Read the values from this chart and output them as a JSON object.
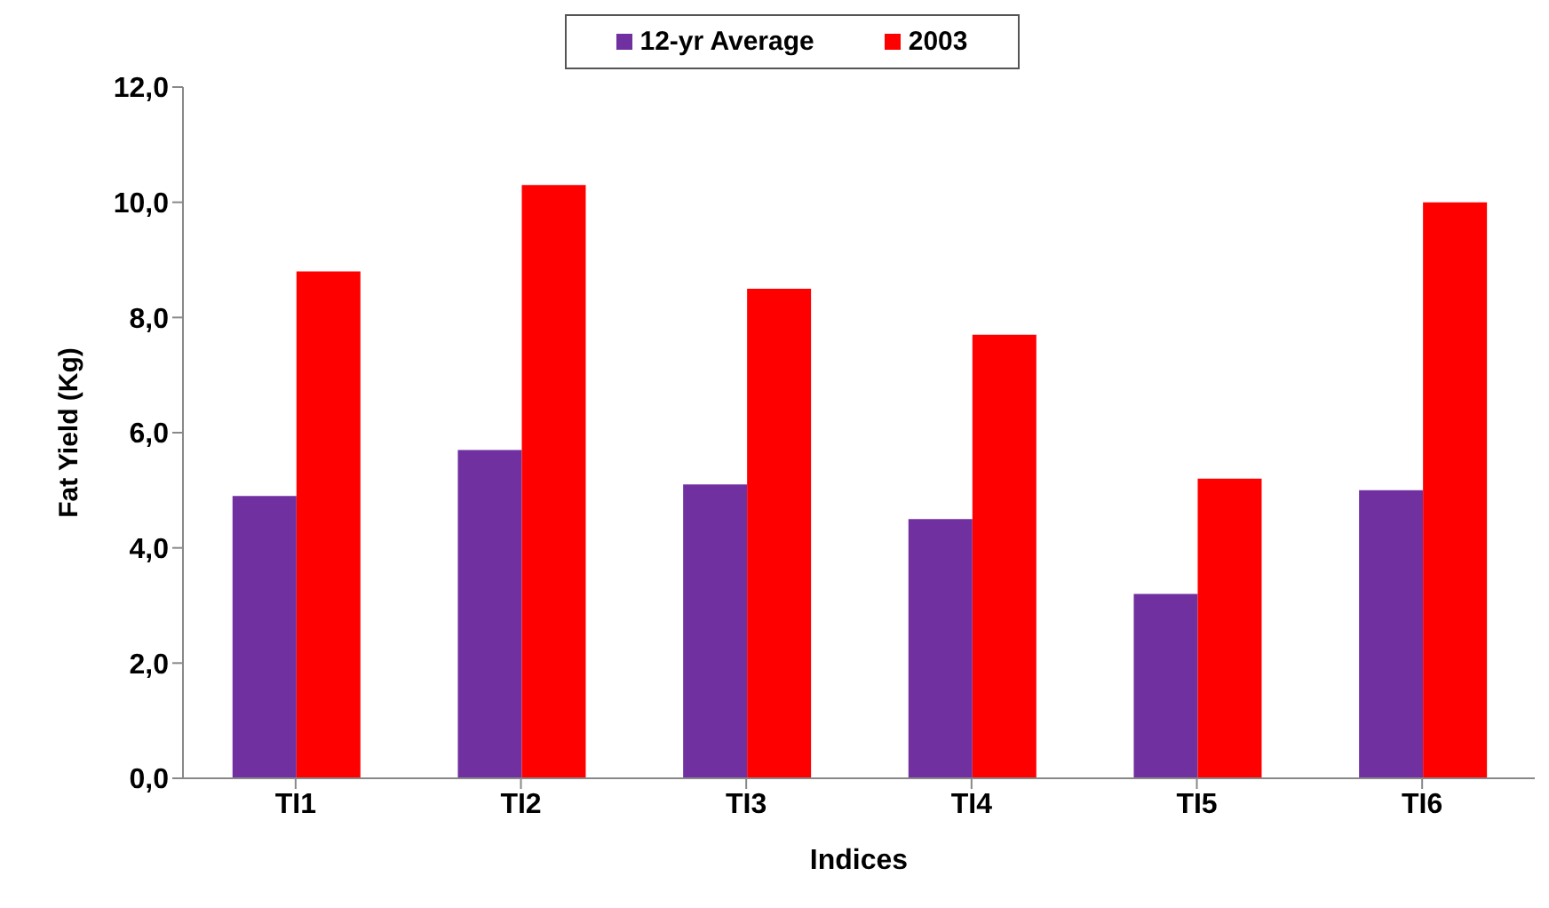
{
  "chart_data": {
    "type": "bar",
    "xlabel": "Indices",
    "ylabel": "Fat Yield (Kg)",
    "categories": [
      "TI1",
      "TI2",
      "TI3",
      "TI4",
      "TI5",
      "TI6"
    ],
    "series": [
      {
        "name": "12-yr Average",
        "color": "#7030a0",
        "values": [
          4.9,
          5.7,
          5.1,
          4.5,
          3.2,
          5.0
        ]
      },
      {
        "name": "2003",
        "color": "#ff0000",
        "values": [
          8.8,
          10.3,
          8.5,
          7.7,
          5.2,
          10.0
        ]
      }
    ],
    "ylim": [
      0,
      12
    ],
    "yticks": [
      {
        "value": 0,
        "label": "0,0"
      },
      {
        "value": 2,
        "label": "2,0"
      },
      {
        "value": 4,
        "label": "4,0"
      },
      {
        "value": 6,
        "label": "6,0"
      },
      {
        "value": 8,
        "label": "8,0"
      },
      {
        "value": 10,
        "label": "10,0"
      },
      {
        "value": 12,
        "label": "12,0"
      }
    ],
    "grid": false,
    "legend": "top"
  }
}
